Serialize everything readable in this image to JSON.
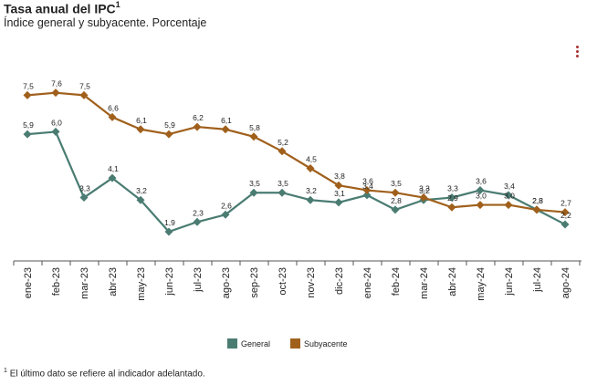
{
  "title": "Tasa anual del IPC",
  "title_note": "1",
  "subtitle": "Índice general y subyacente. Porcentaje",
  "menu_icon": "more-vert-icon",
  "footnote_mark": "1",
  "footnote": "El último dato se refiere al indicador adelantado.",
  "chart_data": {
    "type": "line",
    "categories": [
      "ene-23",
      "feb-23",
      "mar-23",
      "abr-23",
      "may-23",
      "jun-23",
      "jul-23",
      "ago-23",
      "sep-23",
      "oct-23",
      "nov-23",
      "dic-23",
      "ene-24",
      "feb-24",
      "mar-24",
      "abr-24",
      "may-24",
      "jun-24",
      "jul-24",
      "ago-24"
    ],
    "series": [
      {
        "name": "General",
        "color": "#4a7c72",
        "values": [
          5.9,
          6.0,
          3.3,
          4.1,
          3.2,
          1.9,
          2.3,
          2.6,
          3.5,
          3.5,
          3.2,
          3.1,
          3.4,
          2.8,
          3.2,
          3.3,
          3.6,
          3.4,
          2.8,
          2.2
        ],
        "labels": [
          "5,9",
          "6,0",
          "3,3",
          "4,1",
          "3,2",
          "1,9",
          "2,3",
          "2,6",
          "3,5",
          "3,5",
          "3,2",
          "3,1",
          "3,4",
          "2,8",
          "3,2",
          "3,3",
          "3,6",
          "3,4",
          "2,8",
          "2,2"
        ]
      },
      {
        "name": "Subyacente",
        "color": "#a0601c",
        "values": [
          7.5,
          7.6,
          7.5,
          6.6,
          6.1,
          5.9,
          6.2,
          6.1,
          5.8,
          5.2,
          4.5,
          3.8,
          3.6,
          3.5,
          3.3,
          2.9,
          3.0,
          3.0,
          2.8,
          2.7
        ],
        "labels": [
          "7,5",
          "7,6",
          "7,5",
          "6,6",
          "6,1",
          "5,9",
          "6,2",
          "6,1",
          "5,8",
          "5,2",
          "4,5",
          "3,8",
          "3,6",
          "3,5",
          "3,3",
          "2,9",
          "3,0",
          "3,0",
          "2,8",
          "2,7"
        ]
      }
    ],
    "ylim": [
      1.0,
      8.0
    ],
    "xlabel": "",
    "ylabel": "",
    "grid": false,
    "legend": "bottom-center"
  }
}
